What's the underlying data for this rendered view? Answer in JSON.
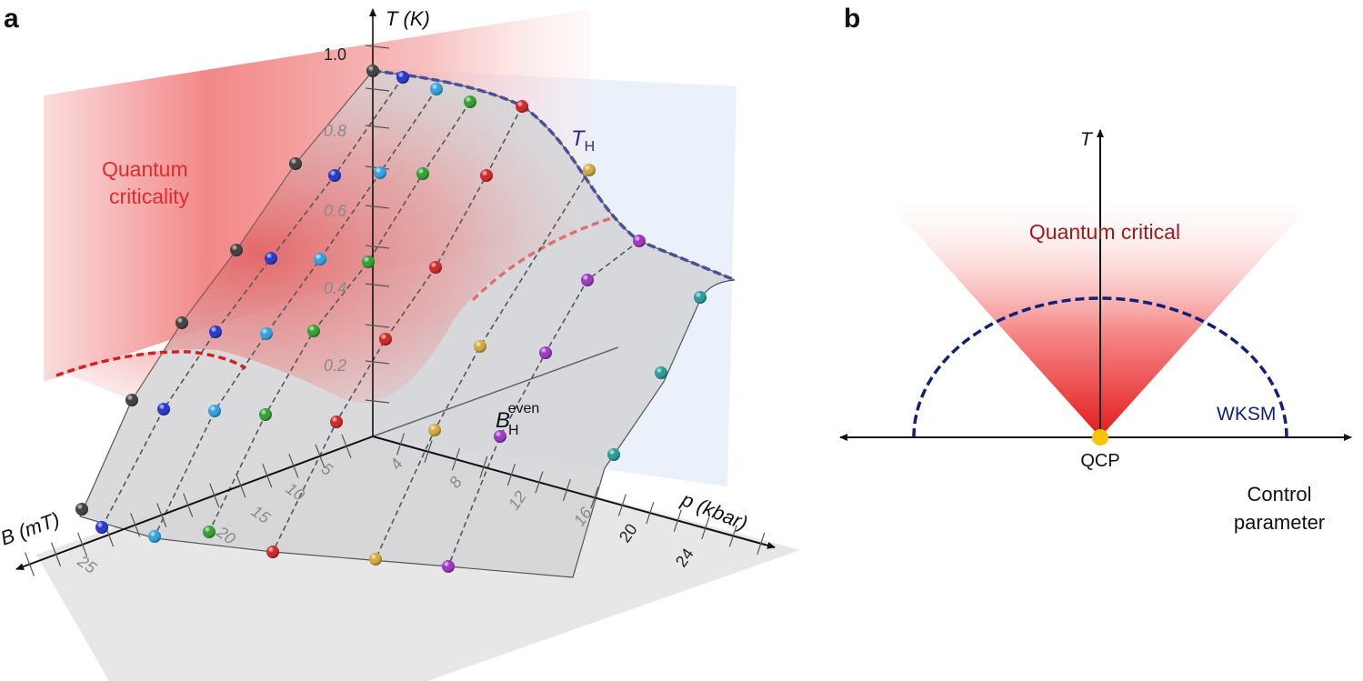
{
  "panel_a": {
    "label": "a",
    "t_axis_label": "T (K)",
    "t_ticks": [
      "1.0",
      "0.8",
      "0.6",
      "0.4",
      "0.2"
    ],
    "b_axis_label": "B (mT)",
    "b_ticks": [
      "5",
      "10",
      "15",
      "20",
      "25"
    ],
    "p_axis_label": "p (kbar)",
    "p_ticks": [
      "4",
      "8",
      "12",
      "16",
      "20",
      "24"
    ],
    "region_label_line1": "Quantum",
    "region_label_line2": "criticality",
    "th_label_main": "T",
    "th_label_sub": "H",
    "bh_label_main": "B",
    "bh_label_sub": "H",
    "bh_label_sup": "even",
    "colors": {
      "quantum_criticality": "#e8393a",
      "th_line": "#4a4fa0",
      "series": [
        "#3a3a3a",
        "#1f2fd0",
        "#2aa0e0",
        "#2aa02a",
        "#d01f1f",
        "#d4a838",
        "#9a2fc0",
        "#1e9a98"
      ]
    }
  },
  "panel_b": {
    "label": "b",
    "t_axis_label": "T",
    "fan_label": "Quantum critical",
    "dome_label": "WKSM",
    "point_label": "QCP",
    "x_axis_label_line1": "Control",
    "x_axis_label_line2": "parameter",
    "colors": {
      "fan": "#e31b1b",
      "dome": "#12207a",
      "qcp": "#f7c600",
      "fan_text": "#a01c1c"
    }
  }
}
